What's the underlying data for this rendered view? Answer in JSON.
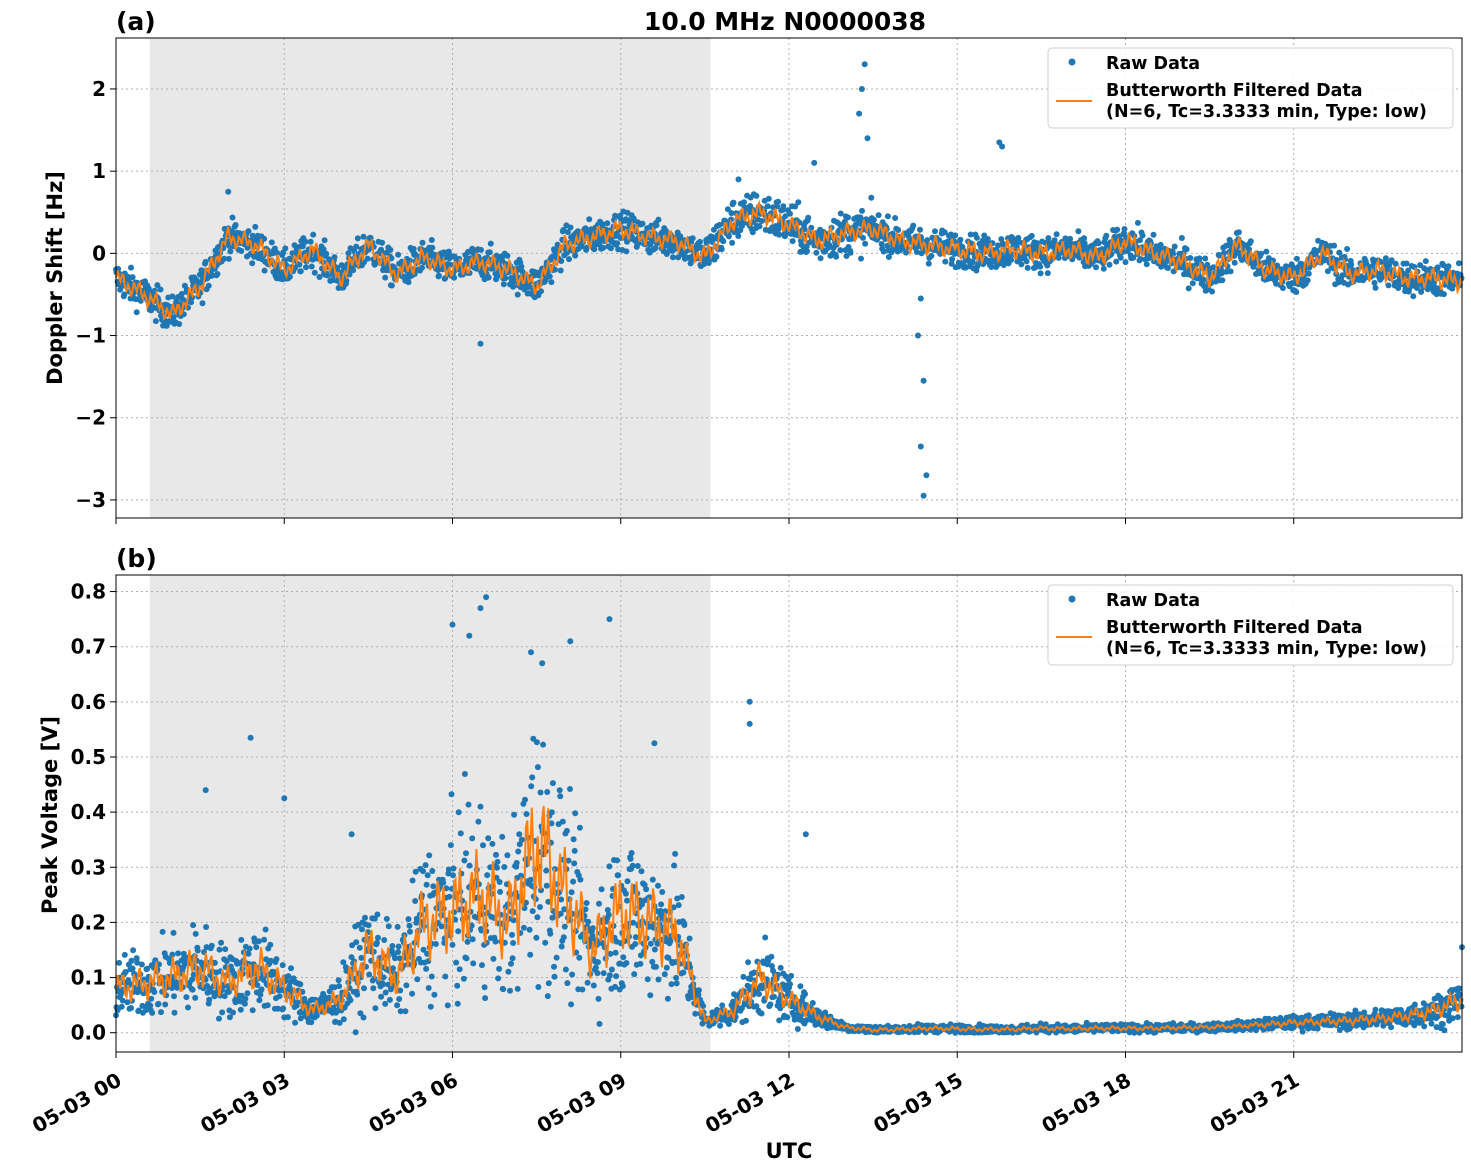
{
  "figure": {
    "title": "10.0 MHz N0000038",
    "xlabel": "UTC"
  },
  "colors": {
    "raw": "#1f77b4",
    "filtered": "#ff7f0e",
    "shade": "#e8e8e8"
  },
  "chart_data": [
    {
      "type": "scatter",
      "panel_label": "(a)",
      "ylabel": "Doppler Shift [Hz]",
      "xlim_hours": [
        0,
        24
      ],
      "ylim": [
        -3.22,
        2.62
      ],
      "yticks": [
        2,
        1,
        0,
        -1,
        -2,
        -3
      ],
      "ytick_labels": [
        "2",
        "1",
        "0",
        "−1",
        "−2",
        "−3"
      ],
      "grid": true,
      "legend_position": "top-right",
      "legend": [
        "Raw Data",
        "Butterworth Filtered Data",
        "(N=6, Tc=3.3333 min, Type: low)"
      ],
      "shaded_range_hours": [
        0.6,
        10.6
      ],
      "series": [
        {
          "name": "Butterworth Filtered Data",
          "x_hours": [
            0,
            0.5,
            1,
            1.5,
            2,
            2.5,
            3,
            3.5,
            4,
            4.5,
            5,
            5.5,
            6,
            6.5,
            7,
            7.5,
            8,
            8.5,
            9,
            9.5,
            10,
            10.5,
            11,
            11.5,
            12,
            12.5,
            13,
            13.5,
            14,
            14.5,
            15,
            15.5,
            16,
            16.5,
            17,
            17.5,
            18,
            18.5,
            19,
            19.5,
            20,
            20.5,
            21,
            21.5,
            22,
            22.5,
            23,
            23.5,
            24
          ],
          "values": [
            -0.3,
            -0.5,
            -0.75,
            -0.4,
            0.2,
            0.1,
            -0.2,
            0.05,
            -0.3,
            0.1,
            -0.25,
            -0.05,
            -0.2,
            -0.1,
            -0.2,
            -0.4,
            0.1,
            0.2,
            0.3,
            0.2,
            0.15,
            -0.05,
            0.4,
            0.5,
            0.35,
            0.15,
            0.25,
            0.3,
            0.15,
            0.1,
            0.05,
            0.0,
            0.05,
            0.0,
            0.05,
            -0.05,
            0.15,
            0.0,
            -0.1,
            -0.3,
            0.1,
            -0.2,
            -0.3,
            0.0,
            -0.25,
            -0.2,
            -0.3,
            -0.3,
            -0.35
          ]
        },
        {
          "name": "Raw Data",
          "spike_points": [
            [
              13.35,
              2.3
            ],
            [
              13.3,
              2.0
            ],
            [
              13.25,
              1.7
            ],
            [
              13.4,
              1.4
            ],
            [
              14.35,
              -0.55
            ],
            [
              14.3,
              -1.0
            ],
            [
              14.4,
              -1.55
            ],
            [
              14.35,
              -2.35
            ],
            [
              14.45,
              -2.7
            ],
            [
              14.4,
              -2.95
            ],
            [
              15.75,
              1.35
            ],
            [
              15.8,
              1.3
            ],
            [
              12.45,
              1.1
            ],
            [
              11.1,
              0.9
            ],
            [
              2.0,
              0.75
            ],
            [
              6.5,
              -1.1
            ]
          ]
        }
      ]
    },
    {
      "type": "scatter",
      "panel_label": "(b)",
      "ylabel": "Peak Voltage [V]",
      "xlim_hours": [
        0,
        24
      ],
      "ylim": [
        -0.035,
        0.83
      ],
      "yticks": [
        0.8,
        0.7,
        0.6,
        0.5,
        0.4,
        0.3,
        0.2,
        0.1,
        0.0
      ],
      "ytick_labels": [
        "0.8",
        "0.7",
        "0.6",
        "0.5",
        "0.4",
        "0.3",
        "0.2",
        "0.1",
        "0.0"
      ],
      "grid": true,
      "legend_position": "top-right",
      "legend": [
        "Raw Data",
        "Butterworth Filtered Data",
        "(N=6, Tc=3.3333 min, Type: low)"
      ],
      "shaded_range_hours": [
        0.6,
        10.6
      ],
      "xticks_hours": [
        0,
        3,
        6,
        9,
        12,
        15,
        18,
        21
      ],
      "xtick_labels": [
        "05-03 00",
        "05-03 03",
        "05-03 06",
        "05-03 09",
        "05-03 12",
        "05-03 15",
        "05-03 18",
        "05-03 21"
      ],
      "series": [
        {
          "name": "Butterworth Filtered Data",
          "x_hours": [
            0,
            0.5,
            1,
            1.5,
            2,
            2.5,
            3,
            3.5,
            4,
            4.5,
            5,
            5.5,
            6,
            6.5,
            7,
            7.5,
            8,
            8.5,
            9,
            9.5,
            10,
            10.5,
            11,
            11.5,
            12,
            12.5,
            13,
            13.5,
            14,
            14.5,
            15,
            15.5,
            16,
            16.5,
            17,
            17.5,
            18,
            18.5,
            19,
            19.5,
            20,
            20.5,
            21,
            21.5,
            22,
            22.5,
            23,
            23.5,
            24
          ],
          "values": [
            0.08,
            0.09,
            0.1,
            0.12,
            0.09,
            0.12,
            0.08,
            0.04,
            0.06,
            0.15,
            0.1,
            0.2,
            0.22,
            0.25,
            0.2,
            0.35,
            0.25,
            0.15,
            0.22,
            0.2,
            0.18,
            0.02,
            0.04,
            0.1,
            0.06,
            0.03,
            0.01,
            0.005,
            0.006,
            0.008,
            0.007,
            0.006,
            0.006,
            0.008,
            0.007,
            0.008,
            0.008,
            0.008,
            0.009,
            0.01,
            0.012,
            0.015,
            0.018,
            0.02,
            0.022,
            0.025,
            0.03,
            0.04,
            0.06
          ]
        },
        {
          "name": "Raw Data",
          "spike_points": [
            [
              6.6,
              0.79
            ],
            [
              6.5,
              0.77
            ],
            [
              7.4,
              0.69
            ],
            [
              7.6,
              0.67
            ],
            [
              8.8,
              0.75
            ],
            [
              8.1,
              0.71
            ],
            [
              6.0,
              0.74
            ],
            [
              6.3,
              0.72
            ],
            [
              11.3,
              0.6
            ],
            [
              11.3,
              0.56
            ],
            [
              2.4,
              0.535
            ],
            [
              1.6,
              0.44
            ],
            [
              3.0,
              0.425
            ],
            [
              9.6,
              0.525
            ],
            [
              12.3,
              0.36
            ],
            [
              4.2,
              0.36
            ],
            [
              24,
              0.155
            ]
          ]
        }
      ]
    }
  ]
}
